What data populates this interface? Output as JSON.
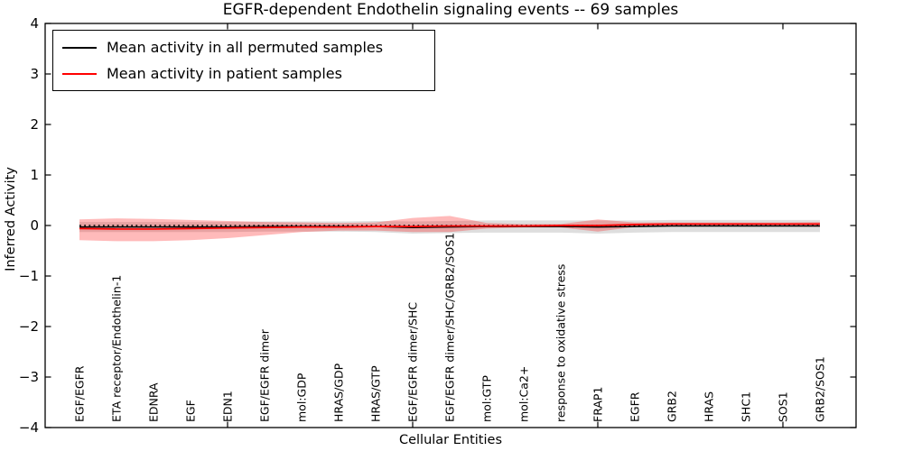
{
  "chart_data": {
    "type": "line",
    "title": "EGFR-dependent Endothelin signaling events -- 69 samples",
    "xlabel": "Cellular Entities",
    "ylabel": "Inferred Activity",
    "ylim": [
      -4,
      4
    ],
    "yticks": [
      {
        "value": 4,
        "label": "4"
      },
      {
        "value": 3,
        "label": "3"
      },
      {
        "value": 2,
        "label": "2"
      },
      {
        "value": 1,
        "label": "1"
      },
      {
        "value": 0,
        "label": "0"
      },
      {
        "value": -1,
        "label": "−1"
      },
      {
        "value": -2,
        "label": "−2"
      },
      {
        "value": -3,
        "label": "−3"
      },
      {
        "value": -4,
        "label": "−4"
      }
    ],
    "xticks": [
      5,
      10,
      15,
      20
    ],
    "grid": false,
    "legend_position": "upper left",
    "categories": [
      "EGF/EGFR",
      "ETA receptor/Endothelin-1",
      "EDNRA",
      "EGF",
      "EDN1",
      "EGF/EGFR dimer",
      "mol:GDP",
      "HRAS/GDP",
      "HRAS/GTP",
      "EGF/EGFR dimer/SHC",
      "EGF/EGFR dimer/SHC/GRB2/SOS1",
      "mol:GTP",
      "mol:Ca2+",
      "response to oxidative stress",
      "FRAP1",
      "EGFR",
      "GRB2",
      "HRAS",
      "SHC1",
      "SOS1",
      "GRB2/SOS1"
    ],
    "zero_line": {
      "value": 0,
      "style": "dotted",
      "color": "#000000"
    },
    "series": [
      {
        "name": "Mean activity in all permuted samples",
        "color": "#000000",
        "band_color": "rgba(0,0,0,0.13)",
        "mean": [
          -0.03,
          -0.03,
          -0.03,
          -0.03,
          -0.03,
          -0.02,
          -0.02,
          -0.02,
          -0.02,
          -0.04,
          -0.03,
          -0.02,
          -0.02,
          -0.02,
          -0.03,
          -0.02,
          -0.01,
          -0.01,
          -0.01,
          -0.01,
          -0.01
        ],
        "upper": [
          0.07,
          0.07,
          0.07,
          0.07,
          0.07,
          0.08,
          0.08,
          0.08,
          0.09,
          0.08,
          0.09,
          0.1,
          0.1,
          0.1,
          0.1,
          0.1,
          0.11,
          0.11,
          0.11,
          0.11,
          0.11
        ],
        "lower": [
          -0.13,
          -0.13,
          -0.13,
          -0.13,
          -0.13,
          -0.12,
          -0.12,
          -0.12,
          -0.13,
          -0.16,
          -0.15,
          -0.14,
          -0.14,
          -0.14,
          -0.16,
          -0.14,
          -0.13,
          -0.13,
          -0.13,
          -0.13,
          -0.13
        ]
      },
      {
        "name": "Mean activity in patient samples",
        "color": "#ff0000",
        "band_color": "rgba(255,0,0,0.27)",
        "mean": [
          -0.06,
          -0.07,
          -0.07,
          -0.06,
          -0.05,
          -0.04,
          -0.03,
          -0.03,
          -0.02,
          -0.02,
          -0.01,
          -0.01,
          -0.01,
          0.0,
          0.0,
          0.02,
          0.03,
          0.03,
          0.03,
          0.03,
          0.03
        ],
        "upper": [
          0.12,
          0.14,
          0.13,
          0.11,
          0.09,
          0.07,
          0.06,
          0.05,
          0.06,
          0.15,
          0.19,
          0.05,
          0.03,
          0.03,
          0.12,
          0.06,
          0.06,
          0.06,
          0.06,
          0.06,
          0.07
        ],
        "lower": [
          -0.29,
          -0.31,
          -0.31,
          -0.29,
          -0.25,
          -0.19,
          -0.13,
          -0.1,
          -0.1,
          -0.13,
          -0.13,
          -0.06,
          -0.04,
          -0.04,
          -0.12,
          -0.03,
          -0.02,
          -0.02,
          -0.02,
          -0.02,
          -0.03
        ]
      }
    ]
  }
}
